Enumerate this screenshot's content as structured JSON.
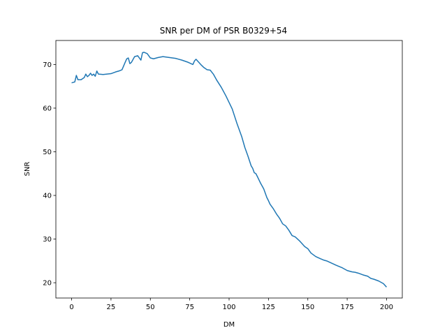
{
  "chart_data": {
    "type": "line",
    "title": "SNR per DM of PSR B0329+54",
    "xlabel": "DM",
    "ylabel": "SNR",
    "xlim": [
      -10,
      210
    ],
    "ylim": [
      16.5,
      75.5
    ],
    "xticks": [
      0,
      25,
      50,
      75,
      100,
      125,
      150,
      175,
      200
    ],
    "yticks": [
      20,
      30,
      40,
      50,
      60,
      70
    ],
    "grid": false,
    "legend": "none",
    "series": [
      {
        "color": "#1f77b4",
        "x": [
          0,
          2,
          3,
          4,
          6,
          8,
          9,
          10,
          11,
          12,
          13,
          14,
          15,
          16,
          17,
          20,
          25,
          28,
          30,
          32,
          34,
          35,
          36,
          37,
          38,
          40,
          42,
          44,
          45,
          46,
          48,
          50,
          52,
          55,
          58,
          62,
          66,
          70,
          74,
          77,
          78,
          79,
          80,
          82,
          84,
          86,
          88,
          90,
          92,
          95,
          98,
          100,
          102,
          105,
          108,
          110,
          112,
          114,
          115,
          116,
          117,
          118,
          120,
          122,
          124,
          125,
          126,
          128,
          130,
          132,
          134,
          136,
          138,
          140,
          142,
          145,
          148,
          150,
          152,
          155,
          158,
          160,
          162,
          165,
          168,
          170,
          172,
          175,
          178,
          180,
          182,
          185,
          188,
          190,
          192,
          195,
          198,
          200
        ],
        "y": [
          65.8,
          66.0,
          67.5,
          66.5,
          66.5,
          67.0,
          67.8,
          67.2,
          67.5,
          68.0,
          67.5,
          67.8,
          67.3,
          68.5,
          67.8,
          67.7,
          67.9,
          68.3,
          68.5,
          68.8,
          70.5,
          71.3,
          71.5,
          70.2,
          70.5,
          71.8,
          72.0,
          71.0,
          72.7,
          72.8,
          72.5,
          71.5,
          71.3,
          71.6,
          71.8,
          71.6,
          71.4,
          71.0,
          70.5,
          70.0,
          70.8,
          71.2,
          70.8,
          70.0,
          69.3,
          68.8,
          68.7,
          67.8,
          66.5,
          64.8,
          62.8,
          61.3,
          59.8,
          56.5,
          53.5,
          51.0,
          49.0,
          46.8,
          46.2,
          45.2,
          45.0,
          44.3,
          42.8,
          41.5,
          39.5,
          38.8,
          38.0,
          37.0,
          35.8,
          34.8,
          33.5,
          33.0,
          32.0,
          30.8,
          30.5,
          29.5,
          28.3,
          27.8,
          26.8,
          26.0,
          25.5,
          25.2,
          25.0,
          24.5,
          24.0,
          23.7,
          23.4,
          22.8,
          22.5,
          22.4,
          22.2,
          21.8,
          21.5,
          21.0,
          20.8,
          20.4,
          19.8,
          19.0
        ]
      }
    ]
  }
}
